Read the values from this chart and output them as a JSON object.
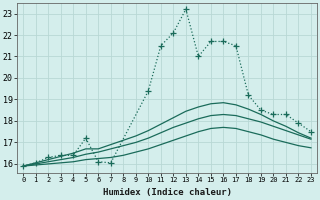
{
  "xlabel": "Humidex (Indice chaleur)",
  "xlim": [
    -0.5,
    23.5
  ],
  "ylim": [
    15.6,
    23.5
  ],
  "xticks": [
    0,
    1,
    2,
    3,
    4,
    5,
    6,
    7,
    8,
    9,
    10,
    11,
    12,
    13,
    14,
    15,
    16,
    17,
    18,
    19,
    20,
    21,
    22,
    23
  ],
  "yticks": [
    16,
    17,
    18,
    19,
    20,
    21,
    22,
    23
  ],
  "bg_color": "#d4eeec",
  "grid_color": "#b8d8d5",
  "line_color": "#1a6b5a",
  "series1_x": [
    0,
    1,
    2,
    3,
    4,
    5,
    6,
    7,
    10,
    11,
    12,
    13,
    14,
    15,
    16,
    17,
    18,
    19,
    20,
    21,
    22,
    23
  ],
  "series1_y": [
    15.9,
    16.05,
    16.3,
    16.4,
    16.4,
    17.2,
    16.1,
    16.05,
    19.4,
    21.5,
    22.1,
    23.2,
    21.0,
    21.7,
    21.7,
    21.5,
    19.2,
    18.5,
    18.3,
    18.3,
    17.9,
    17.5
  ],
  "series2_x": [
    0,
    1,
    2,
    3,
    4,
    5,
    6,
    7,
    8,
    9,
    10,
    11,
    12,
    13,
    14,
    15,
    16,
    17,
    18,
    19,
    20,
    21,
    22,
    23
  ],
  "series2_y": [
    15.9,
    15.95,
    16.0,
    16.05,
    16.1,
    16.2,
    16.25,
    16.3,
    16.4,
    16.55,
    16.7,
    16.9,
    17.1,
    17.3,
    17.5,
    17.65,
    17.7,
    17.65,
    17.5,
    17.35,
    17.15,
    17.0,
    16.85,
    16.75
  ],
  "series3_x": [
    0,
    1,
    2,
    3,
    4,
    5,
    6,
    7,
    8,
    9,
    10,
    11,
    12,
    13,
    14,
    15,
    16,
    17,
    18,
    19,
    20,
    21,
    22,
    23
  ],
  "series3_y": [
    15.9,
    16.0,
    16.1,
    16.2,
    16.3,
    16.45,
    16.55,
    16.7,
    16.85,
    17.0,
    17.2,
    17.45,
    17.7,
    17.9,
    18.1,
    18.25,
    18.3,
    18.25,
    18.1,
    17.95,
    17.75,
    17.55,
    17.35,
    17.15
  ],
  "series4_x": [
    0,
    1,
    2,
    3,
    4,
    5,
    6,
    7,
    8,
    9,
    10,
    11,
    12,
    13,
    14,
    15,
    16,
    17,
    18,
    19,
    20,
    21,
    22,
    23
  ],
  "series4_y": [
    15.9,
    16.05,
    16.2,
    16.35,
    16.5,
    16.7,
    16.7,
    16.9,
    17.1,
    17.3,
    17.55,
    17.85,
    18.15,
    18.45,
    18.65,
    18.8,
    18.85,
    18.75,
    18.55,
    18.3,
    18.0,
    17.75,
    17.45,
    17.2
  ]
}
